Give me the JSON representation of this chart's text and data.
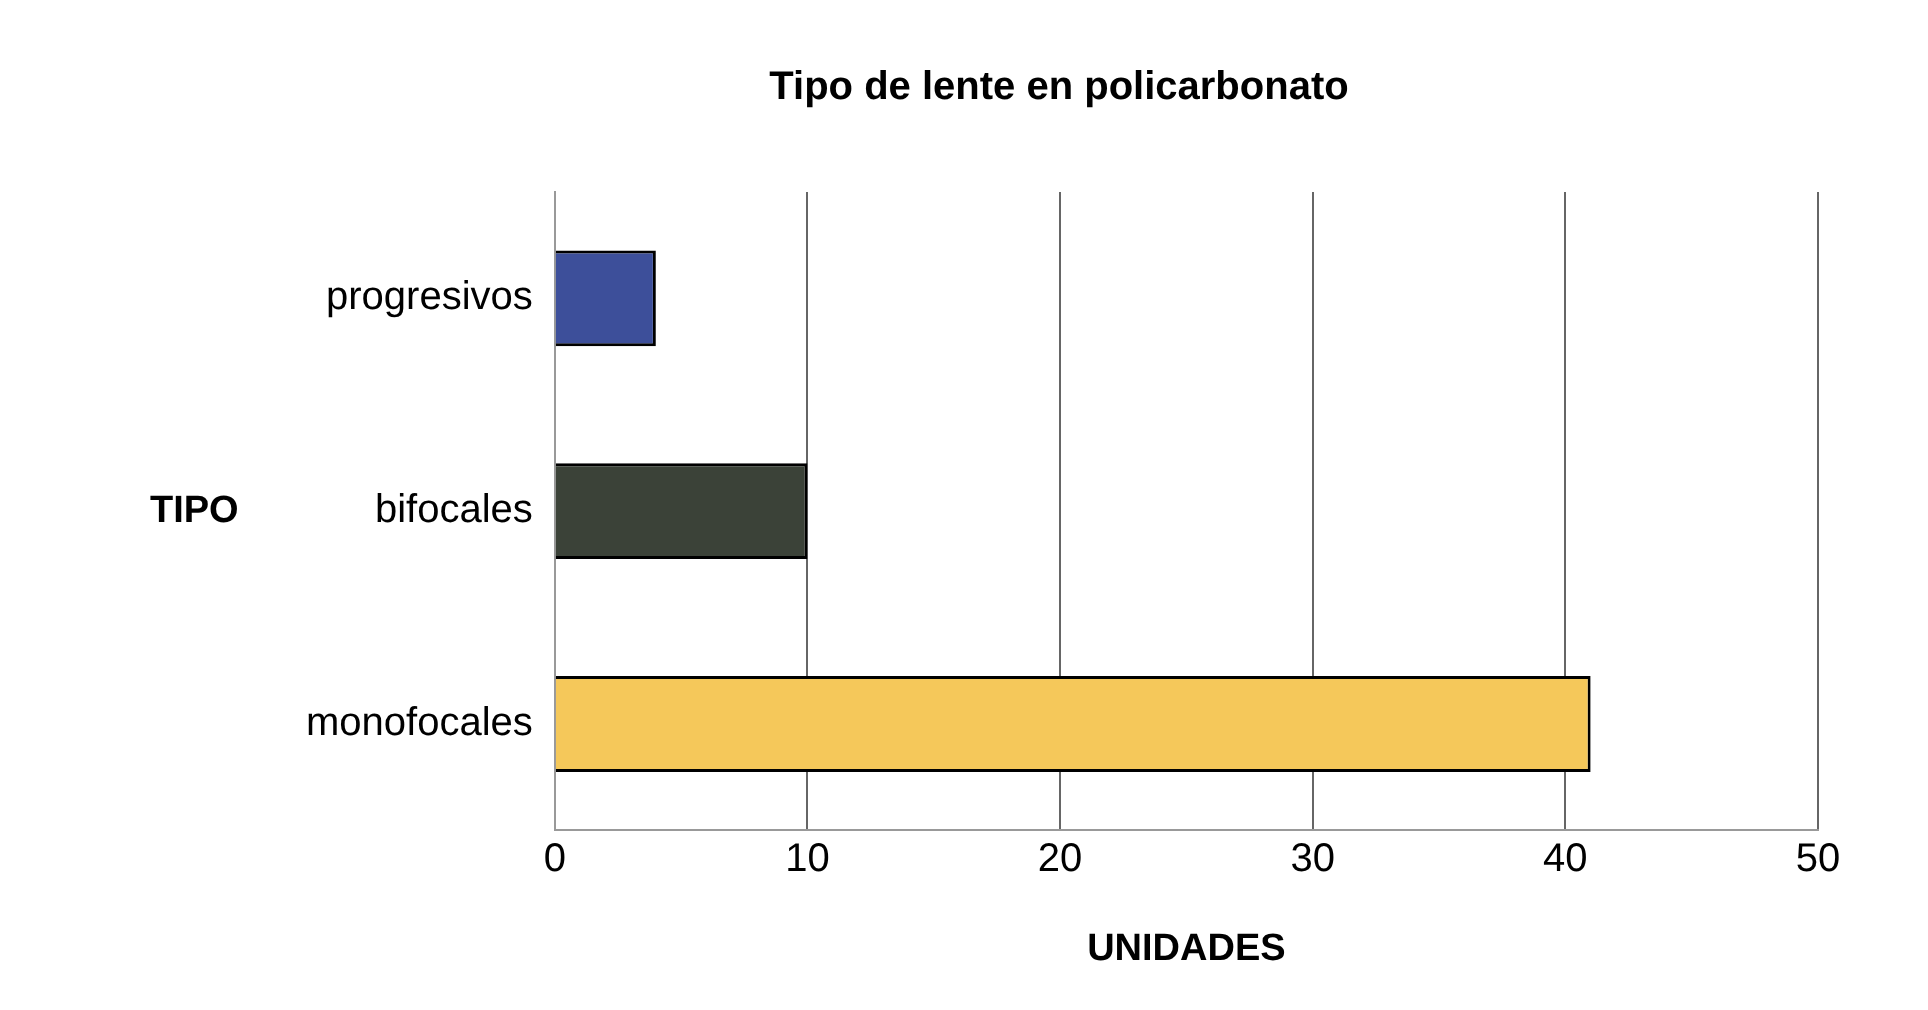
{
  "chart_data": {
    "type": "bar",
    "orientation": "horizontal",
    "title": "Tipo de lente en policarbonato",
    "xlabel": "UNIDADES",
    "ylabel": "TIPO",
    "categories": [
      "progresivos",
      "bifocales",
      "monofocales"
    ],
    "values": [
      4,
      10,
      41
    ],
    "colors": [
      "#3d4f9a",
      "#3b4238",
      "#f5c85a"
    ],
    "xlim": [
      0,
      50
    ],
    "xticks": [
      0,
      10,
      20,
      30,
      40,
      50
    ],
    "grid": "x",
    "legend": false
  }
}
